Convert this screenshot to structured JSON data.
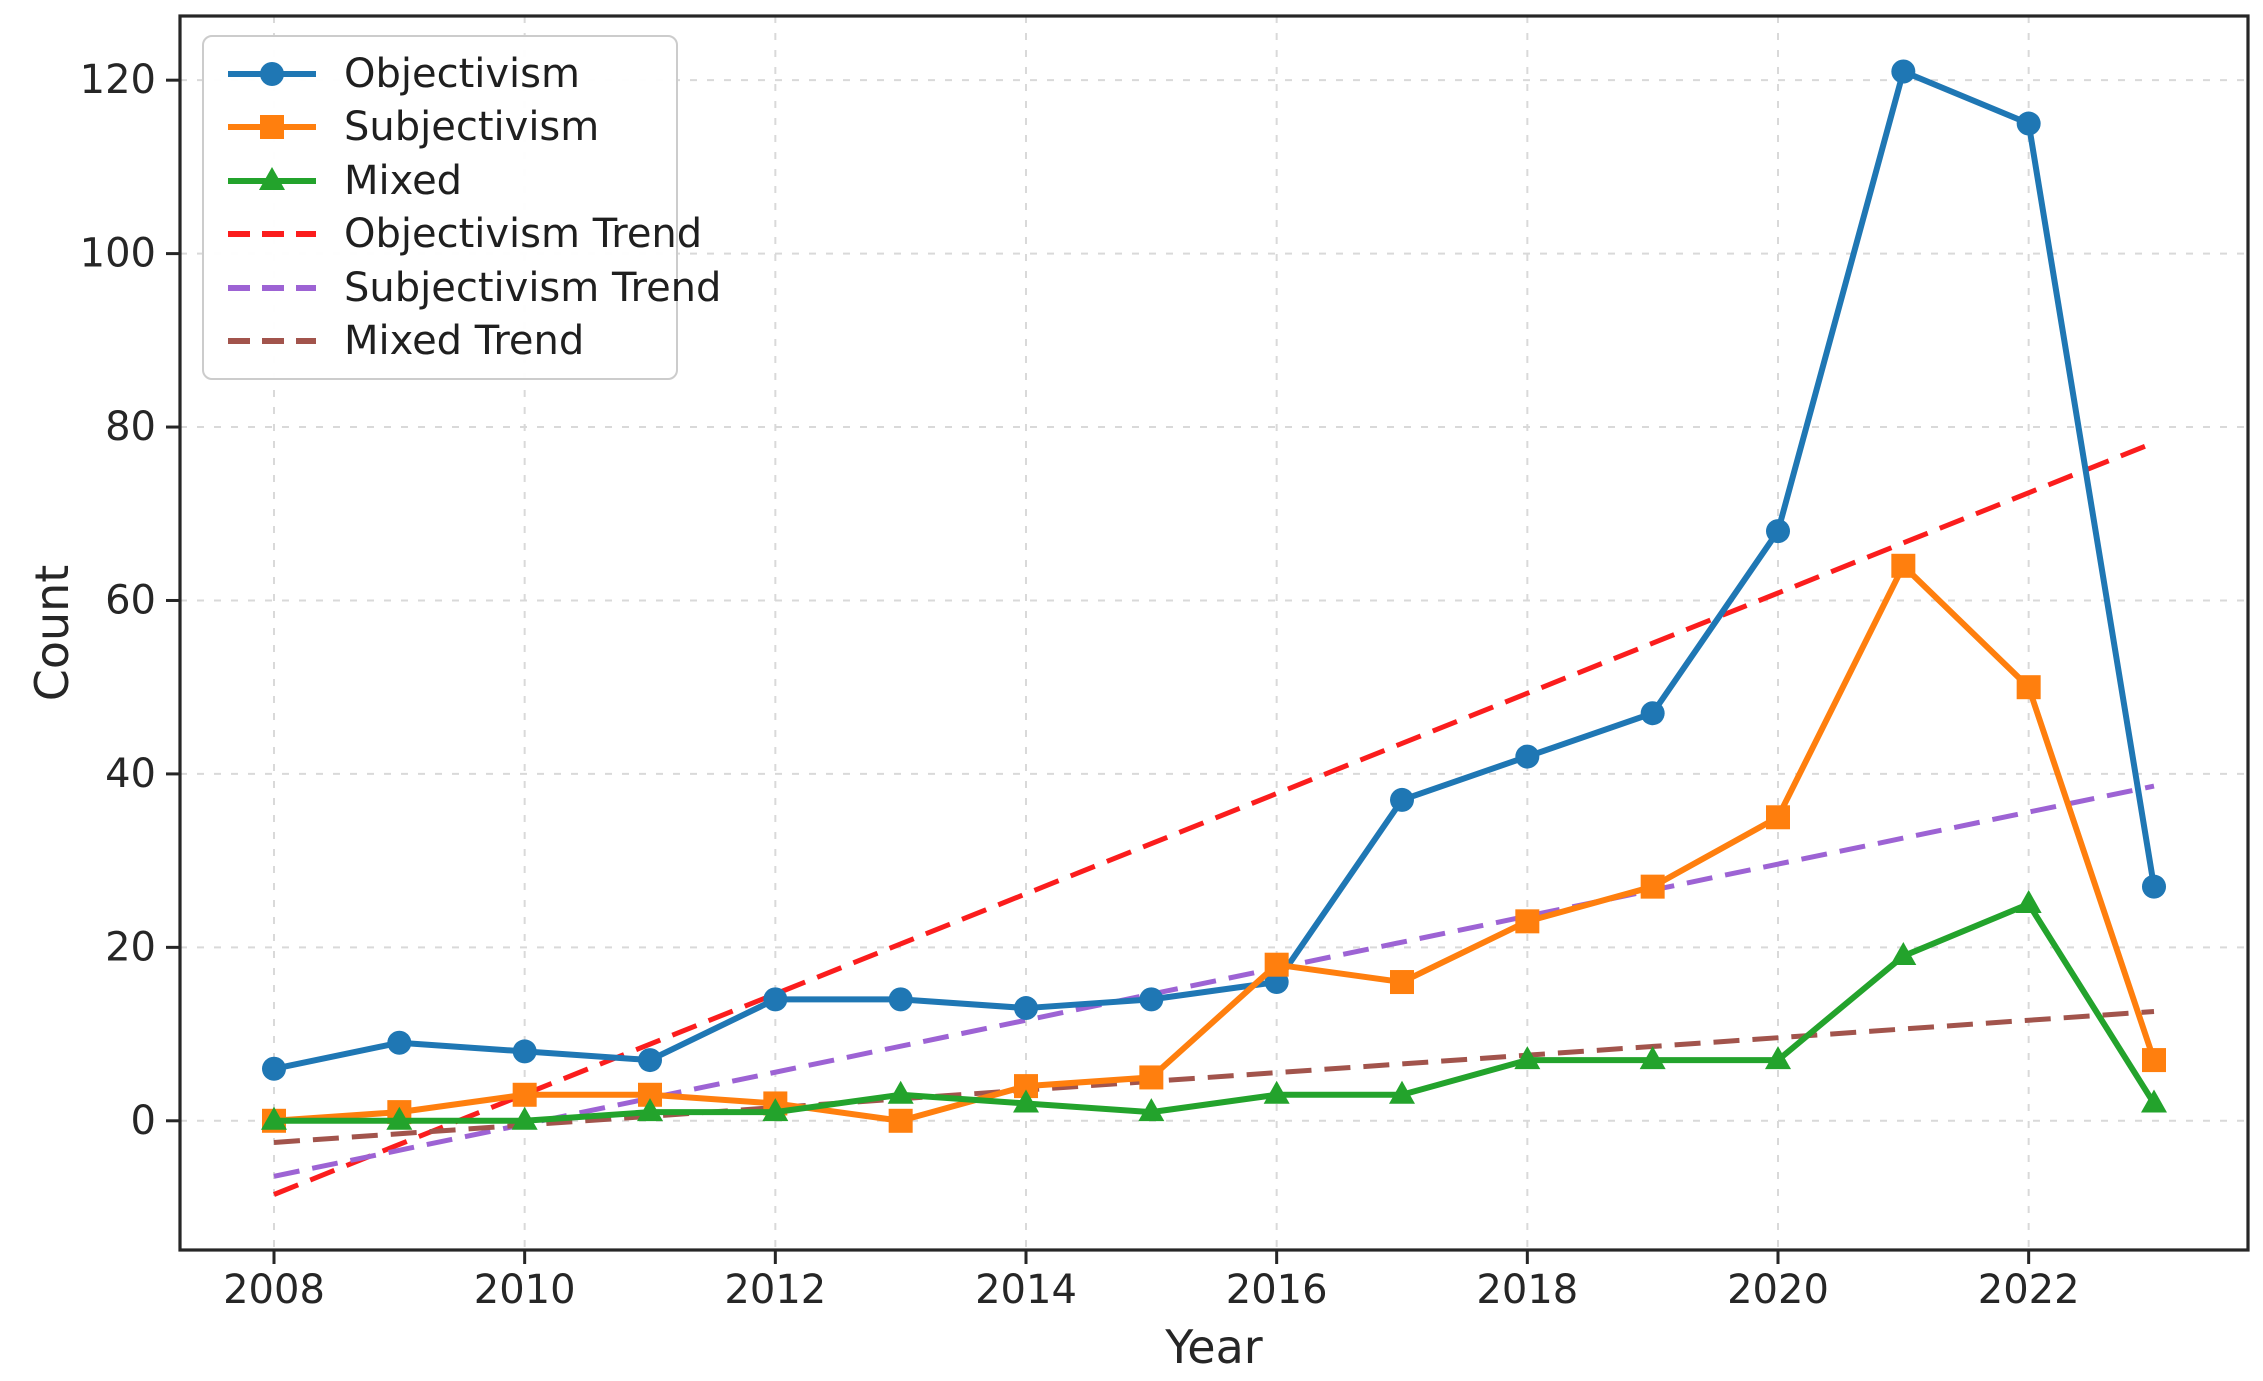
{
  "figure": {
    "background": "#ffffff",
    "frame_color": "#262626",
    "grid_color": "#d9d9d9",
    "tick_color": "#262626",
    "text_color": "#262626"
  },
  "chart_data": {
    "type": "line",
    "title": "",
    "xlabel": "Year",
    "ylabel": "Count",
    "grid": true,
    "legend_position": "upper left",
    "x": [
      2008,
      2009,
      2010,
      2011,
      2012,
      2013,
      2014,
      2015,
      2016,
      2017,
      2018,
      2019,
      2020,
      2021,
      2022,
      2023
    ],
    "x_ticks": [
      2008,
      2010,
      2012,
      2014,
      2016,
      2018,
      2020,
      2022
    ],
    "y_ticks": [
      0,
      20,
      40,
      60,
      80,
      100,
      120
    ],
    "x_domain": [
      2007.25,
      2023.75
    ],
    "y_domain": [
      -14.9,
      127.4
    ],
    "series": [
      {
        "name": "Objectivism",
        "color": "#1f77b4",
        "marker": "circle",
        "values": [
          6,
          9,
          8,
          7,
          14,
          14,
          13,
          14,
          16,
          37,
          42,
          47,
          68,
          121,
          115,
          27
        ]
      },
      {
        "name": "Subjectivism",
        "color": "#ff7f0e",
        "marker": "square",
        "values": [
          0,
          1,
          3,
          3,
          2,
          0,
          4,
          5,
          18,
          16,
          23,
          27,
          35,
          64,
          50,
          7
        ]
      },
      {
        "name": "Mixed",
        "color": "#23a32c",
        "marker": "triangle",
        "values": [
          0,
          0,
          0,
          1,
          1,
          3,
          2,
          1,
          3,
          3,
          7,
          7,
          7,
          19,
          25,
          2
        ]
      }
    ],
    "trend_lines": [
      {
        "name": "Objectivism Trend",
        "color": "#fb1d1d",
        "x_start": 2008,
        "x_end": 2023,
        "y_start": -8.5,
        "y_end": 78.2
      },
      {
        "name": "Subjectivism Trend",
        "color": "#9d63d4",
        "x_start": 2008,
        "x_end": 2023,
        "y_start": -6.4,
        "y_end": 38.6
      },
      {
        "name": "Mixed Trend",
        "color": "#a2544c",
        "x_start": 2008,
        "x_end": 2023,
        "y_start": -2.5,
        "y_end": 12.6
      }
    ]
  }
}
